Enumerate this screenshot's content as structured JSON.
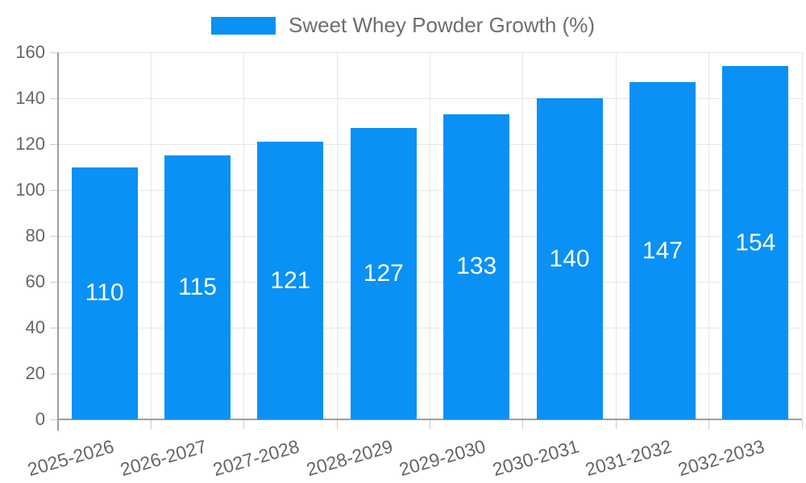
{
  "chart_data": {
    "type": "bar",
    "title": "",
    "series_name": "Sweet Whey Powder Growth (%)",
    "categories": [
      "2025-2026",
      "2026-2027",
      "2027-2028",
      "2028-2029",
      "2029-2030",
      "2030-2031",
      "2031-2032",
      "2032-2033"
    ],
    "values": [
      110,
      115,
      121,
      127,
      133,
      140,
      147,
      154
    ],
    "xlabel": "",
    "ylabel": "",
    "ylim": [
      0,
      160
    ],
    "yticks": [
      0,
      20,
      40,
      60,
      80,
      100,
      120,
      140,
      160
    ],
    "grid": true,
    "legend_position": "top-center",
    "bar_label_position": "inside-center"
  },
  "style": {
    "bar_color": "#0991F6",
    "bar_label_color": "#ffffff",
    "grid_color": "#e6e6e6",
    "axis_line_color": "#9e9e9e",
    "tick_color": "#cccccc",
    "axis_label_color": "#666666",
    "legend_text_color": "#6e6e6e",
    "background": "#ffffff"
  }
}
